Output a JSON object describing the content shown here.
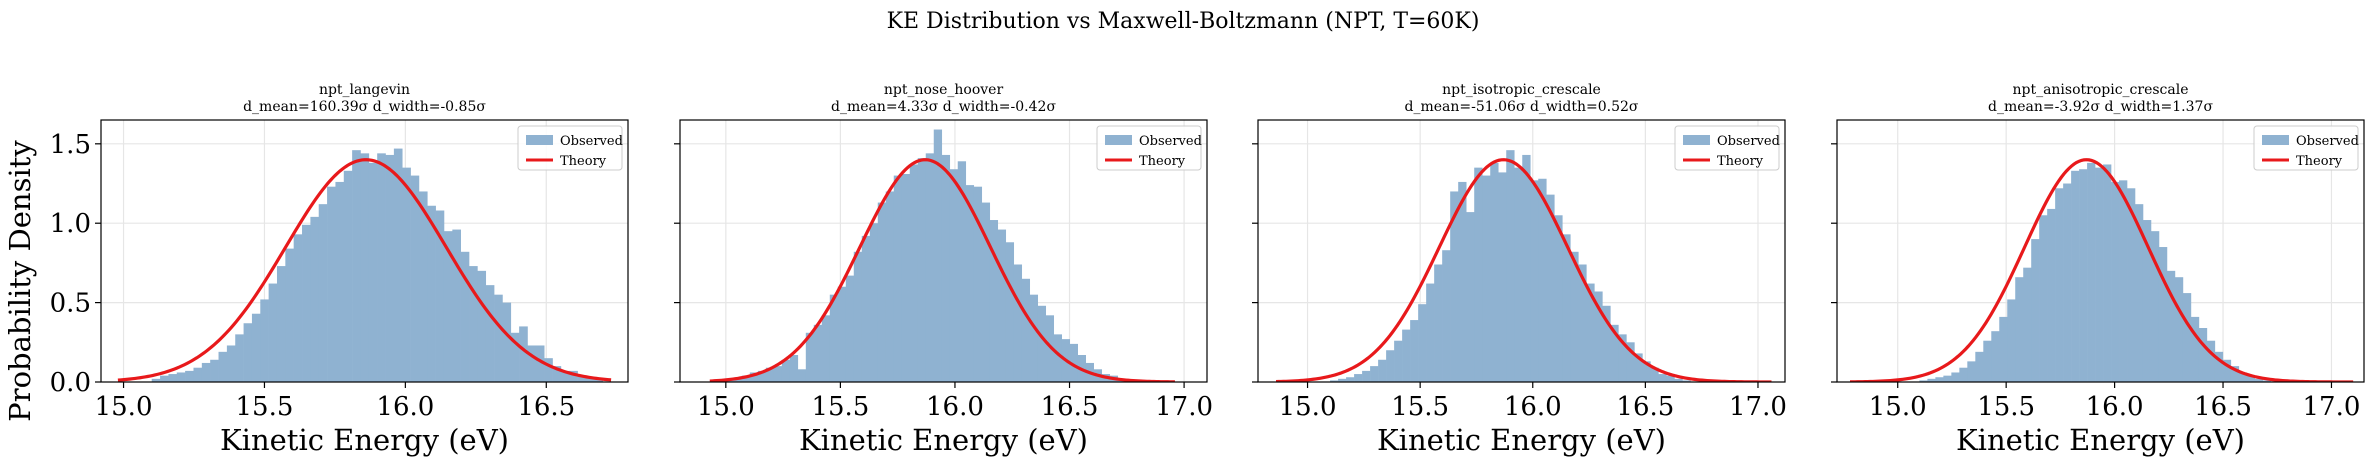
{
  "figure": {
    "suptitle": "KE Distribution vs Maxwell-Boltzmann (NPT, T=60K)",
    "ylabel": "Probability Density",
    "colors": {
      "observed": "#8fb2d1",
      "theory": "#e8191b",
      "grid": "#e6e6e6",
      "axis": "#000000"
    }
  },
  "chart_data": [
    {
      "type": "bar",
      "title": "npt_langevin",
      "subtitle": "d_mean=160.39σ  d_width=-0.85σ",
      "xlabel": "Kinetic Energy (eV)",
      "ylabel": "Probability Density",
      "xlim": [
        14.92,
        16.79
      ],
      "ylim": [
        0,
        1.65
      ],
      "xticks": [
        "15.0",
        "15.5",
        "16.0",
        "16.5"
      ],
      "xtick_values": [
        15.0,
        15.5,
        16.0,
        16.5
      ],
      "yticks": [
        "0.0",
        "0.5",
        "1.0",
        "1.5"
      ],
      "ytick_values": [
        0,
        0.5,
        1.0,
        1.5
      ],
      "grid": true,
      "legend_position": "top-right",
      "legend": [
        "Observed",
        "Theory"
      ],
      "hist_range": [
        15.1,
        16.7
      ],
      "theory_range": [
        14.98,
        16.73
      ],
      "theory_mu": 15.86,
      "theory_peak": 1.4,
      "observed": [
        0.02,
        0.04,
        0.05,
        0.06,
        0.07,
        0.09,
        0.12,
        0.14,
        0.19,
        0.23,
        0.3,
        0.37,
        0.43,
        0.52,
        0.62,
        0.73,
        0.84,
        0.93,
        0.99,
        1.04,
        1.12,
        1.23,
        1.26,
        1.33,
        1.46,
        1.44,
        1.38,
        1.44,
        1.43,
        1.47,
        1.35,
        1.3,
        1.2,
        1.11,
        1.08,
        0.95,
        0.96,
        0.82,
        0.73,
        0.7,
        0.61,
        0.55,
        0.5,
        0.31,
        0.35,
        0.23,
        0.23,
        0.15,
        0.1,
        0.07,
        0.07,
        0.04,
        0.03,
        0.02
      ]
    },
    {
      "type": "bar",
      "title": "npt_nose_hoover",
      "subtitle": "d_mean=4.33σ  d_width=-0.42σ",
      "xlabel": "Kinetic Energy (eV)",
      "ylabel": "",
      "xlim": [
        14.8,
        17.1
      ],
      "ylim": [
        0,
        1.65
      ],
      "xticks": [
        "15.0",
        "15.5",
        "16.0",
        "16.5",
        "17.0"
      ],
      "xtick_values": [
        15.0,
        15.5,
        16.0,
        16.5,
        17.0
      ],
      "yticks": [
        "0.0",
        "0.5",
        "1.0",
        "1.5"
      ],
      "ytick_values": [
        0,
        0.5,
        1.0,
        1.5
      ],
      "grid": true,
      "legend_position": "top-right",
      "legend": [
        "Observed",
        "Theory"
      ],
      "hist_range": [
        15.0,
        16.78
      ],
      "theory_range": [
        14.93,
        16.96
      ],
      "theory_mu": 15.87,
      "theory_peak": 1.4,
      "observed": [
        0.01,
        0.02,
        0.04,
        0.06,
        0.07,
        0.09,
        0.1,
        0.14,
        0.17,
        0.08,
        0.31,
        0.36,
        0.42,
        0.55,
        0.6,
        0.67,
        0.82,
        0.92,
        1.0,
        1.13,
        1.2,
        1.3,
        1.31,
        1.37,
        1.41,
        1.44,
        1.59,
        1.43,
        1.34,
        1.39,
        1.24,
        1.23,
        1.13,
        1.02,
        0.96,
        0.88,
        0.74,
        0.65,
        0.55,
        0.48,
        0.42,
        0.3,
        0.27,
        0.24,
        0.17,
        0.12,
        0.08,
        0.05,
        0.04,
        0.02,
        0.01
      ]
    },
    {
      "type": "bar",
      "title": "npt_isotropic_crescale",
      "subtitle": "d_mean=-51.06σ  d_width=0.52σ",
      "xlabel": "Kinetic Energy (eV)",
      "ylabel": "",
      "xlim": [
        14.78,
        17.12
      ],
      "ylim": [
        0,
        1.65
      ],
      "xticks": [
        "15.0",
        "15.5",
        "16.0",
        "16.5",
        "17.0"
      ],
      "xtick_values": [
        15.0,
        15.5,
        16.0,
        16.5,
        17.0
      ],
      "yticks": [
        "0.0",
        "0.5",
        "1.0",
        "1.5"
      ],
      "ytick_values": [
        0,
        0.5,
        1.0,
        1.5
      ],
      "grid": true,
      "legend_position": "top-right",
      "legend": [
        "Observed",
        "Theory"
      ],
      "hist_range": [
        15.1,
        16.7
      ],
      "theory_range": [
        14.86,
        17.06
      ],
      "theory_mu": 15.87,
      "theory_peak": 1.4,
      "observed": [
        0.01,
        0.02,
        0.03,
        0.05,
        0.07,
        0.1,
        0.14,
        0.2,
        0.26,
        0.33,
        0.39,
        0.49,
        0.62,
        0.74,
        0.83,
        1.2,
        1.26,
        1.07,
        1.35,
        1.3,
        1.38,
        1.32,
        1.46,
        1.35,
        1.43,
        1.27,
        1.28,
        1.18,
        1.05,
        0.93,
        0.82,
        0.74,
        0.62,
        0.57,
        0.48,
        0.36,
        0.3,
        0.25,
        0.18,
        0.13,
        0.09,
        0.05,
        0.04,
        0.02,
        0.01
      ]
    },
    {
      "type": "bar",
      "title": "npt_anisotropic_crescale",
      "subtitle": "d_mean=-3.92σ  d_width=1.37σ",
      "xlabel": "Kinetic Energy (eV)",
      "ylabel": "",
      "xlim": [
        14.72,
        17.15
      ],
      "ylim": [
        0,
        1.65
      ],
      "xticks": [
        "15.0",
        "15.5",
        "16.0",
        "16.5",
        "17.0"
      ],
      "xtick_values": [
        15.0,
        15.5,
        16.0,
        16.5,
        17.0
      ],
      "yticks": [
        "0.0",
        "0.5",
        "1.0",
        "1.5"
      ],
      "ytick_values": [
        0,
        0.5,
        1.0,
        1.5
      ],
      "grid": true,
      "legend_position": "top-right",
      "legend": [
        "Observed",
        "Theory"
      ],
      "hist_range": [
        15.1,
        16.72
      ],
      "theory_range": [
        14.78,
        17.1
      ],
      "theory_mu": 15.87,
      "theory_peak": 1.4,
      "observed": [
        0.01,
        0.02,
        0.03,
        0.04,
        0.06,
        0.09,
        0.13,
        0.19,
        0.26,
        0.32,
        0.41,
        0.52,
        0.66,
        0.72,
        0.9,
        1.05,
        1.09,
        1.22,
        1.25,
        1.33,
        1.34,
        1.38,
        1.35,
        1.37,
        1.26,
        1.27,
        1.22,
        1.12,
        1.02,
        0.95,
        0.85,
        0.7,
        0.66,
        0.56,
        0.41,
        0.34,
        0.26,
        0.19,
        0.14,
        0.1,
        0.06,
        0.04,
        0.02,
        0.01
      ]
    }
  ]
}
